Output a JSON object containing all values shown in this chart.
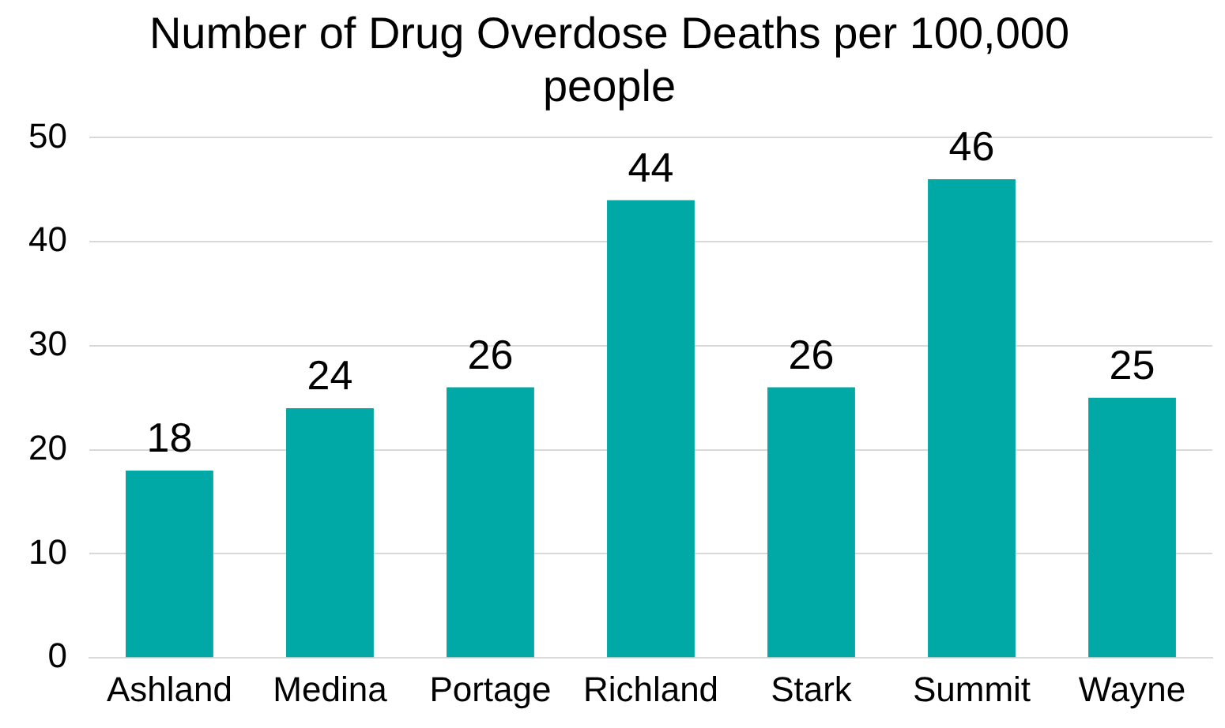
{
  "chart_data": {
    "type": "bar",
    "title": "Number of Drug Overdose Deaths per 100,000 people",
    "categories": [
      "Ashland",
      "Medina",
      "Portage",
      "Richland",
      "Stark",
      "Summit",
      "Wayne"
    ],
    "values": [
      18,
      24,
      26,
      44,
      26,
      46,
      25
    ],
    "color": "#00a9a5",
    "ylim": [
      0,
      50
    ],
    "yticks": [
      0,
      10,
      20,
      30,
      40,
      50
    ],
    "grid": "y",
    "data_labels": true
  }
}
